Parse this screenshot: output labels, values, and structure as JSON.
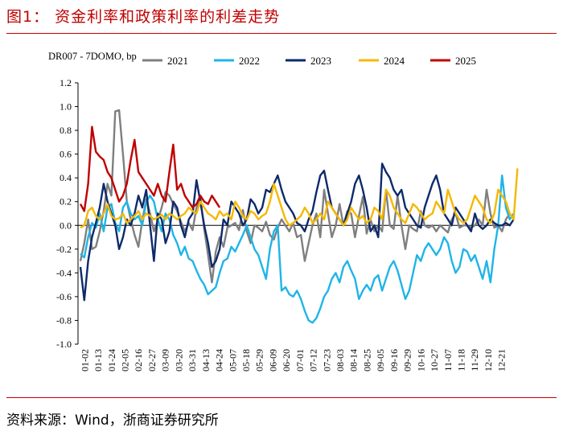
{
  "figure": {
    "title": "图1：  资金利率和政策利率的利差走势",
    "source": "资料来源：Wind，浙商证券研究所"
  },
  "chart_data": {
    "type": "line",
    "ylabel": "DR007 - 7DOMO, bp",
    "ylim": [
      -1.0,
      1.2
    ],
    "yticks": [
      -1.0,
      -0.8,
      -0.6,
      -0.4,
      -0.2,
      0.0,
      0.2,
      0.4,
      0.6,
      0.8,
      1.0,
      1.2
    ],
    "ytick_labels": [
      "-1.0",
      "-0.8",
      "-0.6",
      "-0.4",
      "-0.2",
      "0.0",
      "0.2",
      "0.4",
      "0.6",
      "0.8",
      "1.0",
      "1.2"
    ],
    "xticks": [
      "01-02",
      "01-13",
      "01-24",
      "02-05",
      "02-16",
      "02-27",
      "03-09",
      "03-20",
      "03-31",
      "04-13",
      "04-24",
      "05-07",
      "05-18",
      "05-29",
      "06-09",
      "06-20",
      "07-01",
      "07-12",
      "07-23",
      "08-03",
      "08-14",
      "08-25",
      "09-05",
      "09-16",
      "09-29",
      "10-16",
      "10-27",
      "11-07",
      "11-18",
      "11-29",
      "12-10",
      "12-21"
    ],
    "series": [
      {
        "name": "2021",
        "color": "#7f7f7f",
        "values": [
          -0.3,
          -0.15,
          0.05,
          -0.2,
          -0.18,
          -0.05,
          0.12,
          0.35,
          0.25,
          0.96,
          0.97,
          0.6,
          0.2,
          0.05,
          -0.08,
          -0.18,
          0.04,
          0.22,
          0.1,
          -0.05,
          0.04,
          0.15,
          0.28,
          0.25,
          0.18,
          0.12,
          0.03,
          -0.05,
          0.02,
          -0.04,
          0.15,
          0.24,
          -0.03,
          -0.25,
          -0.48,
          -0.22,
          -0.1,
          -0.18,
          -0.02,
          0.0,
          0.02,
          -0.04,
          0.13,
          -0.05,
          -0.15,
          0.0,
          -0.02,
          -0.05,
          0.03,
          -0.08,
          -0.12,
          -0.02,
          0.05,
          0.0,
          -0.05,
          0.02,
          -0.1,
          -0.08,
          -0.3,
          -0.15,
          0.0,
          0.1,
          -0.1,
          0.3,
          0.1,
          -0.1,
          0.0,
          0.18,
          0.0,
          0.12,
          0.1,
          -0.1,
          0.08,
          0.24,
          -0.07,
          0.05,
          -0.05,
          0.0,
          -0.05,
          0.3,
          0.0,
          -0.03,
          0.25,
          0.0,
          -0.2,
          0.0,
          -0.03,
          -0.05,
          0.12,
          0.0,
          -0.02,
          0.0,
          -0.05,
          0.0,
          -0.03,
          -0.06,
          0.05,
          0.1,
          -0.02,
          0.0,
          0.0,
          -0.02,
          0.0,
          0.05,
          0.0,
          0.3,
          0.1,
          -0.02,
          0.0,
          -0.05,
          0.05,
          0.1
        ]
      },
      {
        "name": "2022",
        "color": "#1fb4e8",
        "values": [
          -0.24,
          -0.27,
          -0.1,
          0.02,
          -0.02,
          0.1,
          -0.05,
          0.15,
          0.18,
          0.02,
          -0.05,
          0.15,
          0.2,
          0.1,
          0.05,
          0.08,
          0.0,
          0.2,
          0.25,
          0.2,
          0.05,
          -0.05,
          0.1,
          0.05,
          -0.08,
          -0.15,
          -0.25,
          -0.18,
          -0.28,
          -0.3,
          -0.38,
          -0.45,
          -0.5,
          -0.58,
          -0.55,
          -0.52,
          -0.4,
          -0.3,
          -0.28,
          -0.18,
          -0.22,
          -0.15,
          -0.08,
          0.0,
          -0.1,
          -0.2,
          -0.25,
          -0.35,
          -0.45,
          -0.2,
          -0.05,
          0.0,
          -0.55,
          -0.52,
          -0.58,
          -0.6,
          -0.55,
          -0.62,
          -0.72,
          -0.8,
          -0.82,
          -0.78,
          -0.7,
          -0.6,
          -0.55,
          -0.45,
          -0.4,
          -0.48,
          -0.35,
          -0.3,
          -0.38,
          -0.45,
          -0.62,
          -0.55,
          -0.5,
          -0.55,
          -0.45,
          -0.42,
          -0.55,
          -0.45,
          -0.35,
          -0.3,
          -0.38,
          -0.5,
          -0.62,
          -0.55,
          -0.4,
          -0.25,
          -0.3,
          -0.2,
          -0.15,
          -0.2,
          -0.25,
          -0.2,
          -0.1,
          -0.15,
          -0.3,
          -0.4,
          -0.35,
          -0.2,
          -0.22,
          -0.3,
          -0.25,
          -0.35,
          -0.45,
          -0.3,
          -0.48,
          -0.2,
          0.0,
          0.42,
          0.15,
          0.05,
          0.1
        ]
      },
      {
        "name": "2023",
        "color": "#0d2a6b",
        "values": [
          -0.35,
          -0.63,
          -0.3,
          -0.1,
          0.02,
          0.15,
          0.35,
          0.2,
          0.1,
          0.0,
          -0.2,
          -0.1,
          0.05,
          0.0,
          0.1,
          0.25,
          0.15,
          0.3,
          0.0,
          -0.3,
          0.1,
          0.05,
          -0.15,
          -0.05,
          0.2,
          0.15,
          0.0,
          -0.1,
          0.05,
          0.1,
          0.38,
          0.2,
          0.0,
          -0.15,
          -0.35,
          -0.3,
          -0.2,
          0.05,
          0.0,
          0.2,
          0.15,
          0.1,
          0.0,
          0.05,
          0.22,
          0.18,
          0.1,
          0.15,
          0.3,
          0.28,
          0.35,
          0.42,
          0.3,
          0.2,
          0.15,
          0.1,
          0.02,
          0.0,
          -0.05,
          0.05,
          0.12,
          0.28,
          0.42,
          0.46,
          0.3,
          0.15,
          0.1,
          0.05,
          0.0,
          0.1,
          0.2,
          0.35,
          0.42,
          0.3,
          0.15,
          -0.05,
          0.0,
          -0.1,
          0.52,
          0.45,
          0.4,
          0.3,
          0.25,
          0.3,
          0.15,
          0.1,
          0.05,
          0.0,
          -0.02,
          0.15,
          0.25,
          0.35,
          0.42,
          0.3,
          0.1,
          0.05,
          0.0,
          0.15,
          0.1,
          0.05,
          0.0,
          -0.05,
          0.1,
          0.0,
          -0.03,
          0.0,
          0.05,
          0.02,
          0.0,
          0.0,
          0.02,
          0.0,
          0.05
        ]
      },
      {
        "name": "2024",
        "color": "#f5b800",
        "values": [
          -0.02,
          0.0,
          0.12,
          0.15,
          0.08,
          0.05,
          0.1,
          0.18,
          0.08,
          0.05,
          0.06,
          0.1,
          0.02,
          0.05,
          0.08,
          0.12,
          0.05,
          0.1,
          0.08,
          0.05,
          0.07,
          0.09,
          0.05,
          0.1,
          0.08,
          0.05,
          0.08,
          0.1,
          0.15,
          0.12,
          0.1,
          0.2,
          0.15,
          0.1,
          0.08,
          0.05,
          0.12,
          0.08,
          0.1,
          0.05,
          0.2,
          0.15,
          0.08,
          0.05,
          0.12,
          0.1,
          0.05,
          0.08,
          0.1,
          0.2,
          0.35,
          0.25,
          0.15,
          0.05,
          0.0,
          0.02,
          0.05,
          0.08,
          0.15,
          0.1,
          0.02,
          0.05,
          0.1,
          0.05,
          0.2,
          0.15,
          0.1,
          0.05,
          0.0,
          0.05,
          0.15,
          0.1,
          0.05,
          0.08,
          0.02,
          0.05,
          0.15,
          0.12,
          0.05,
          0.3,
          0.25,
          0.15,
          0.1,
          0.05,
          0.02,
          0.1,
          0.18,
          0.15,
          0.1,
          0.05,
          0.08,
          0.1,
          0.2,
          0.15,
          0.1,
          0.3,
          0.2,
          0.1,
          0.05,
          0.02,
          0.05,
          0.15,
          0.25,
          0.2,
          0.15,
          0.05,
          0.02,
          0.1,
          0.3,
          0.25,
          0.2,
          0.1,
          0.05,
          0.48
        ]
      },
      {
        "name": "2025",
        "color": "#c00000",
        "values": [
          0.18,
          0.12,
          0.35,
          0.83,
          0.62,
          0.58,
          0.55,
          0.45,
          0.4,
          0.3,
          0.2,
          0.25,
          0.35,
          0.55,
          0.72,
          0.45,
          0.4,
          0.35,
          0.3,
          0.25,
          0.35,
          0.25,
          0.2,
          0.45,
          0.68,
          0.3,
          0.35,
          0.25,
          0.2,
          0.15,
          0.18,
          0.25,
          0.2,
          0.18,
          0.25,
          0.2,
          0.15
        ]
      }
    ]
  }
}
